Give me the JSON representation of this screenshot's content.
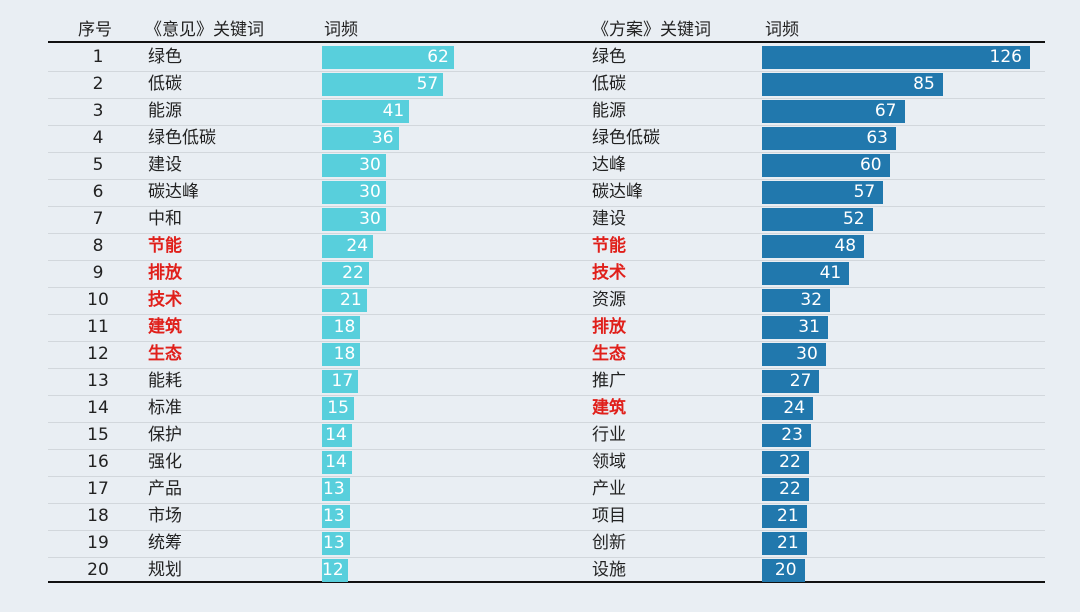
{
  "chart_data": {
    "type": "table",
    "headers": {
      "rank": "序号",
      "left_keyword": "《意见》关键词",
      "left_freq": "词频",
      "right_keyword": "《方案》关键词",
      "right_freq": "词频"
    },
    "ranks": [
      1,
      2,
      3,
      4,
      5,
      6,
      7,
      8,
      9,
      10,
      11,
      12,
      13,
      14,
      15,
      16,
      17,
      18,
      19,
      20
    ],
    "series": [
      {
        "keywords": [
          "绿色",
          "低碳",
          "能源",
          "绿色低碳",
          "建设",
          "碳达峰",
          "中和",
          "节能",
          "排放",
          "技术",
          "建筑",
          "生态",
          "能耗",
          "标准",
          "保护",
          "强化",
          "产品",
          "市场",
          "统筹",
          "规划"
        ],
        "values": [
          62,
          57,
          41,
          36,
          30,
          30,
          30,
          24,
          22,
          21,
          18,
          18,
          17,
          15,
          14,
          14,
          13,
          13,
          13,
          12
        ],
        "highlighted": [
          false,
          false,
          false,
          false,
          false,
          false,
          false,
          true,
          true,
          true,
          true,
          true,
          false,
          false,
          false,
          false,
          false,
          false,
          false,
          false
        ]
      },
      {
        "keywords": [
          "绿色",
          "低碳",
          "能源",
          "绿色低碳",
          "达峰",
          "碳达峰",
          "建设",
          "节能",
          "技术",
          "资源",
          "排放",
          "生态",
          "推广",
          "建筑",
          "行业",
          "领域",
          "产业",
          "项目",
          "创新",
          "设施"
        ],
        "values": [
          126,
          85,
          67,
          63,
          60,
          57,
          52,
          48,
          41,
          32,
          31,
          30,
          27,
          24,
          23,
          22,
          22,
          21,
          21,
          20
        ],
        "highlighted": [
          false,
          false,
          false,
          false,
          false,
          false,
          false,
          true,
          true,
          false,
          true,
          true,
          false,
          true,
          false,
          false,
          false,
          false,
          false,
          false
        ]
      }
    ],
    "colors": {
      "left_bar": "#58cfdc",
      "right_bar": "#2178ad",
      "highlight_text": "#e0201b"
    }
  }
}
